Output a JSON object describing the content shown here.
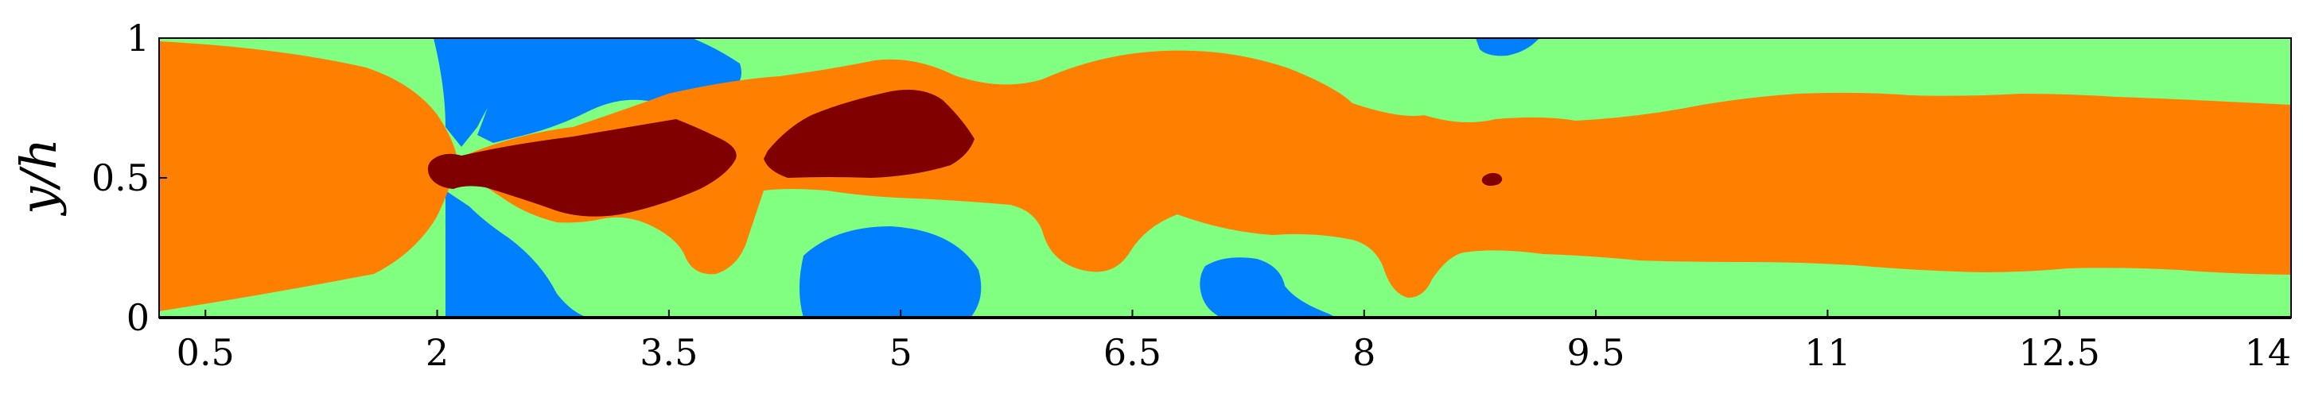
{
  "chart_data": {
    "type": "heatmap",
    "title": "",
    "xlabel": "",
    "ylabel": "y/h",
    "xlim": [
      0.2,
      14
    ],
    "ylim": [
      0,
      1
    ],
    "xticks": [
      0.5,
      2,
      3.5,
      5,
      6.5,
      8,
      9.5,
      11,
      12.5,
      14
    ],
    "yticks": [
      0,
      0.5,
      1
    ],
    "xtick_labels": [
      "0.5",
      "2",
      "3.5",
      "5",
      "6.5",
      "8",
      "9.5",
      "11",
      "12.5",
      "14"
    ],
    "ytick_labels": [
      "0",
      "0.5",
      "1"
    ],
    "grid": false,
    "contour_levels": [
      {
        "color": "#0080ff"
      },
      {
        "color": "#80ff80"
      },
      {
        "color": "#ff8000"
      },
      {
        "color": "#800000"
      }
    ]
  }
}
